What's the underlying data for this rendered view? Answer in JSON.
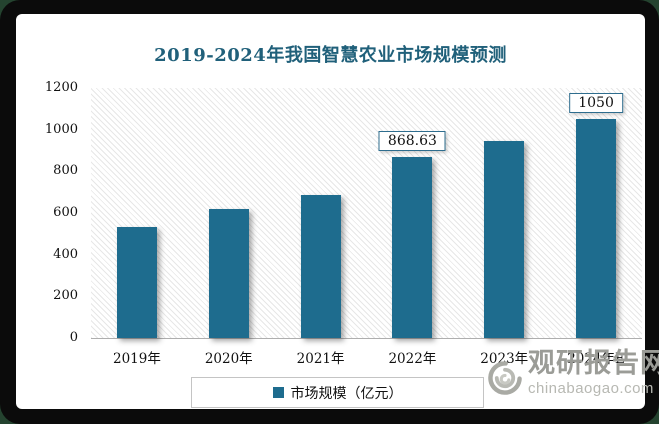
{
  "chart_data": {
    "type": "bar",
    "title": "2019-2024年我国智慧农业市场规模预测",
    "categories": [
      "2019年",
      "2020年",
      "2021年",
      "2022年",
      "2023年",
      "2024年E"
    ],
    "values": [
      533,
      617,
      686,
      868.63,
      946,
      1050
    ],
    "bar_labels": [
      null,
      null,
      null,
      "868.63",
      null,
      "1050"
    ],
    "xlabel": "",
    "ylabel": "",
    "ylim": [
      0,
      1200
    ],
    "yticks": [
      0,
      200,
      400,
      600,
      800,
      1000,
      1200
    ],
    "grid": false,
    "legend": "市场规模（亿元）",
    "legend_position": "bottom",
    "bar_color": "#1e6c8e",
    "title_color": "#20607a",
    "plot_background": "white-with-light-diagonal-hatch"
  },
  "legend": {
    "label": "市场规模（亿元）"
  },
  "watermark": {
    "site_name": "观研报告网",
    "site_url": "chinabaogao.com"
  }
}
